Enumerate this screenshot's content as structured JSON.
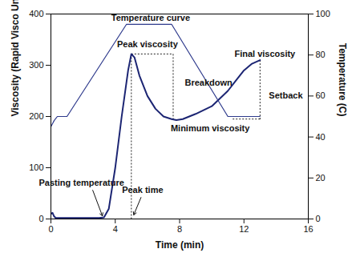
{
  "chart_data": {
    "type": "line",
    "xlabel": "Time (min)",
    "ylabel": "Viscosity (Rapid Visco Units)",
    "y2label": "Temperature (C)",
    "xlim": [
      0,
      16
    ],
    "xticks": [
      0,
      4,
      8,
      12,
      16
    ],
    "ylim": [
      0,
      400
    ],
    "yticks": [
      0,
      100,
      200,
      300,
      400
    ],
    "y2lim": [
      0,
      100
    ],
    "y2ticks": [
      0,
      20,
      40,
      60,
      80,
      100
    ],
    "series": [
      {
        "color": "#1c2573",
        "line_style": "solid",
        "x": [
          0,
          0.1,
          0.2,
          0.3,
          1,
          2,
          3,
          3.3,
          3.6,
          4,
          4.4,
          4.8,
          5.0,
          5.2,
          5.5,
          6,
          6.5,
          7,
          7.5,
          7.8,
          8.2,
          9,
          10,
          11,
          11.5,
          12,
          12.5,
          13
        ],
        "values": [
          10,
          12,
          5,
          2,
          2,
          2,
          2,
          3,
          20,
          100,
          200,
          290,
          322,
          315,
          280,
          240,
          215,
          200,
          195,
          193,
          195,
          205,
          220,
          250,
          270,
          290,
          303,
          310
        ]
      },
      {
        "color": "#2e3a8c",
        "line_style": "solid",
        "axis": "y2",
        "x": [
          0,
          0.2,
          0.4,
          1.0,
          4.7,
          7.5,
          11.0,
          13.0
        ],
        "values": [
          45,
          48,
          50,
          50,
          95,
          95,
          50,
          50
        ]
      }
    ],
    "annotations": [
      {
        "text": "Temperature curve",
        "x": 6.2,
        "y": 392
      },
      {
        "text": "Peak viscosity",
        "x": 6.0,
        "y": 340
      },
      {
        "text": "Breakdown",
        "x": 9.8,
        "y": 265
      },
      {
        "text": "Final viscosity",
        "x": 13.3,
        "y": 322
      },
      {
        "text": "Setback",
        "x": 14.6,
        "y": 240
      },
      {
        "text": "Minimum viscosity",
        "x": 9.9,
        "y": 176
      },
      {
        "text": "Pasting temperature",
        "x": 1.9,
        "y": 70
      },
      {
        "text": "Peak time",
        "x": 5.7,
        "y": 56
      }
    ],
    "arrows": [
      {
        "x1": 2.6,
        "y1": 56,
        "x2": 3.2,
        "y2": 6
      },
      {
        "x1": 5.6,
        "y1": 42,
        "x2": 5.15,
        "y2": 8
      }
    ],
    "reference_lines": [
      {
        "x1": 5.0,
        "y1": 0,
        "x2": 5.0,
        "y2": 322
      },
      {
        "x1": 5.0,
        "y1": 322,
        "x2": 7.6,
        "y2": 322
      },
      {
        "x1": 7.6,
        "y1": 322,
        "x2": 7.6,
        "y2": 193
      },
      {
        "x1": 13.0,
        "y1": 310,
        "x2": 13.0,
        "y2": 193
      },
      {
        "x1": 11.3,
        "y1": 195,
        "x2": 13.0,
        "y2": 195
      }
    ]
  }
}
